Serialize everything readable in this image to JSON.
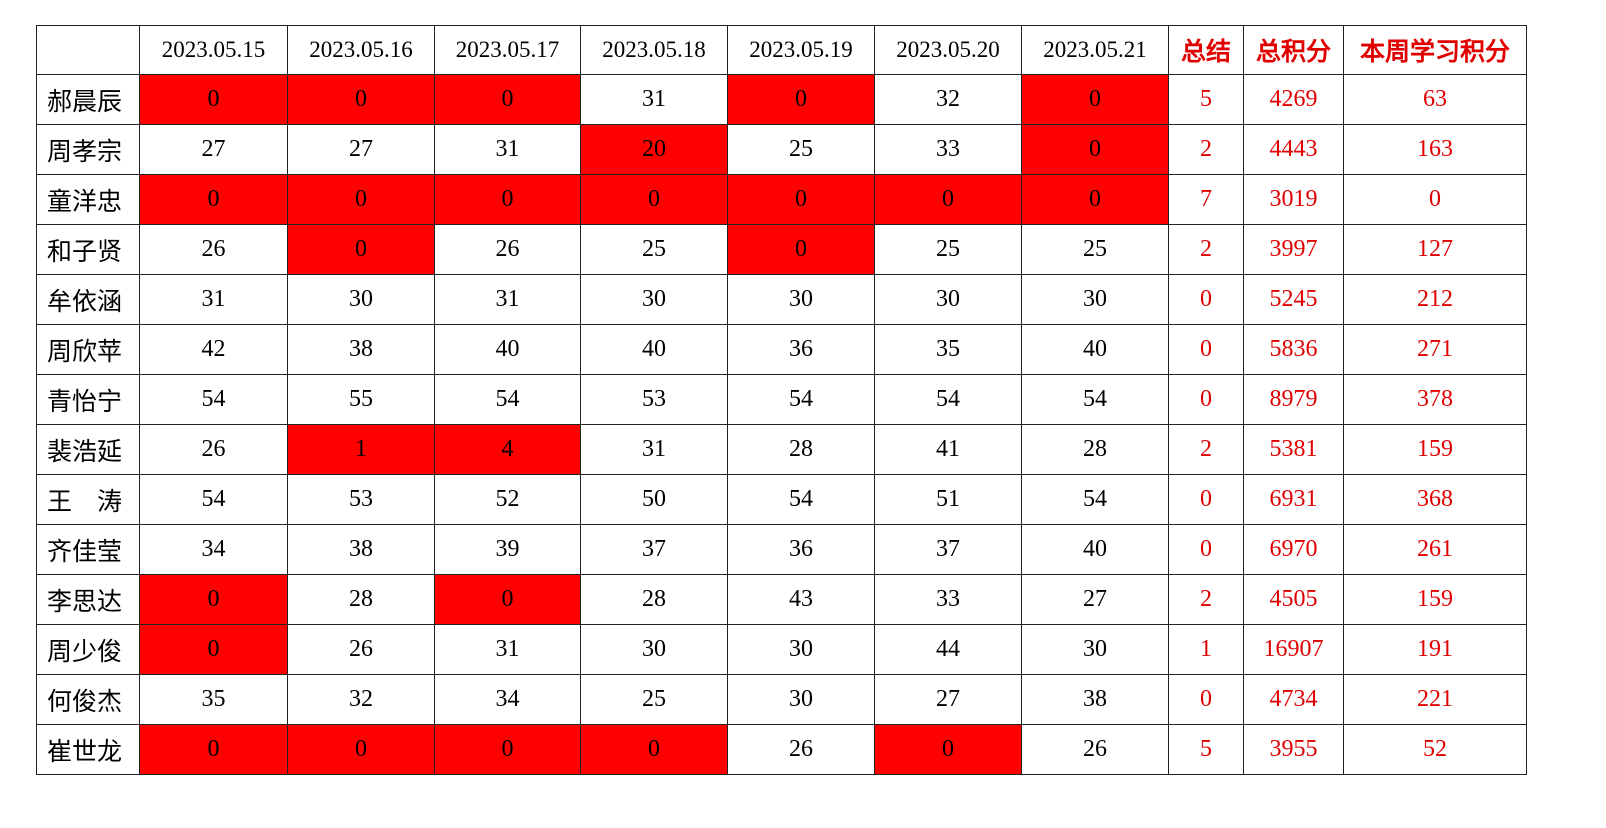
{
  "table": {
    "highlight_color": "#ff0000",
    "header": [
      "2023.05.15",
      "2023.05.16",
      "2023.05.17",
      "2023.05.18",
      "2023.05.19",
      "2023.05.20",
      "2023.05.21",
      "总结",
      "总积分",
      "本周学习积分"
    ],
    "rows": [
      {
        "name": "郝晨辰",
        "daily": [
          0,
          0,
          0,
          31,
          0,
          32,
          0
        ],
        "highlight": [
          true,
          true,
          true,
          false,
          true,
          false,
          true
        ],
        "summary": 5,
        "total": 4269,
        "week": 63
      },
      {
        "name": "周孝宗",
        "daily": [
          27,
          27,
          31,
          20,
          25,
          33,
          0
        ],
        "highlight": [
          false,
          false,
          false,
          true,
          false,
          false,
          true
        ],
        "summary": 2,
        "total": 4443,
        "week": 163
      },
      {
        "name": "童洋忠",
        "daily": [
          0,
          0,
          0,
          0,
          0,
          0,
          0
        ],
        "highlight": [
          true,
          true,
          true,
          true,
          true,
          true,
          true
        ],
        "summary": 7,
        "total": 3019,
        "week": 0
      },
      {
        "name": "和子贤",
        "daily": [
          26,
          0,
          26,
          25,
          0,
          25,
          25
        ],
        "highlight": [
          false,
          true,
          false,
          false,
          true,
          false,
          false
        ],
        "summary": 2,
        "total": 3997,
        "week": 127
      },
      {
        "name": "牟依涵",
        "daily": [
          31,
          30,
          31,
          30,
          30,
          30,
          30
        ],
        "highlight": [
          false,
          false,
          false,
          false,
          false,
          false,
          false
        ],
        "summary": 0,
        "total": 5245,
        "week": 212
      },
      {
        "name": "周欣苹",
        "daily": [
          42,
          38,
          40,
          40,
          36,
          35,
          40
        ],
        "highlight": [
          false,
          false,
          false,
          false,
          false,
          false,
          false
        ],
        "summary": 0,
        "total": 5836,
        "week": 271
      },
      {
        "name": "青怡宁",
        "daily": [
          54,
          55,
          54,
          53,
          54,
          54,
          54
        ],
        "highlight": [
          false,
          false,
          false,
          false,
          false,
          false,
          false
        ],
        "summary": 0,
        "total": 8979,
        "week": 378
      },
      {
        "name": "裴浩延",
        "daily": [
          26,
          1,
          4,
          31,
          28,
          41,
          28
        ],
        "highlight": [
          false,
          true,
          true,
          false,
          false,
          false,
          false
        ],
        "summary": 2,
        "total": 5381,
        "week": 159
      },
      {
        "name": "王　涛",
        "daily": [
          54,
          53,
          52,
          50,
          54,
          51,
          54
        ],
        "highlight": [
          false,
          false,
          false,
          false,
          false,
          false,
          false
        ],
        "summary": 0,
        "total": 6931,
        "week": 368
      },
      {
        "name": "齐佳莹",
        "daily": [
          34,
          38,
          39,
          37,
          36,
          37,
          40
        ],
        "highlight": [
          false,
          false,
          false,
          false,
          false,
          false,
          false
        ],
        "summary": 0,
        "total": 6970,
        "week": 261
      },
      {
        "name": "李思达",
        "daily": [
          0,
          28,
          0,
          28,
          43,
          33,
          27
        ],
        "highlight": [
          true,
          false,
          true,
          false,
          false,
          false,
          false
        ],
        "summary": 2,
        "total": 4505,
        "week": 159
      },
      {
        "name": "周少俊",
        "daily": [
          0,
          26,
          31,
          30,
          30,
          44,
          30
        ],
        "highlight": [
          true,
          false,
          false,
          false,
          false,
          false,
          false
        ],
        "summary": 1,
        "total": 16907,
        "week": 191
      },
      {
        "name": "何俊杰",
        "daily": [
          35,
          32,
          34,
          25,
          30,
          27,
          38
        ],
        "highlight": [
          false,
          false,
          false,
          false,
          false,
          false,
          false
        ],
        "summary": 0,
        "total": 4734,
        "week": 221
      },
      {
        "name": "崔世龙",
        "daily": [
          0,
          0,
          0,
          0,
          26,
          0,
          26
        ],
        "highlight": [
          true,
          true,
          true,
          true,
          false,
          true,
          false
        ],
        "summary": 5,
        "total": 3955,
        "week": 52
      }
    ]
  }
}
